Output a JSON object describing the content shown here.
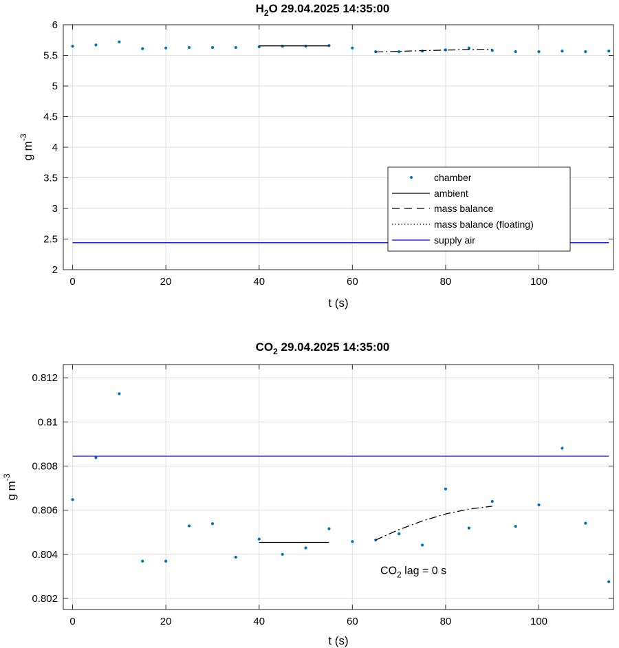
{
  "chart_data": [
    {
      "type": "scatter",
      "title": {
        "species_main": "H",
        "species_sub": "2",
        "species_tail": "O",
        "timestamp": "29.04.2025 14:35:00"
      },
      "xlabel": "t (s)",
      "ylabel": {
        "main": "g m",
        "sup": "-3"
      },
      "xlim": [
        -2,
        116
      ],
      "ylim": [
        2,
        6
      ],
      "xticks": [
        0,
        20,
        40,
        60,
        80,
        100
      ],
      "yticks": [
        2,
        2.5,
        3,
        3.5,
        4,
        4.5,
        5,
        5.5,
        6
      ],
      "grid": true,
      "legend_position": "lower-right",
      "series": [
        {
          "name": "chamber",
          "kind": "points",
          "color": "#0072bd",
          "x": [
            0,
            5,
            10,
            15,
            20,
            25,
            30,
            35,
            40,
            45,
            50,
            55,
            60,
            65,
            70,
            75,
            80,
            85,
            90,
            95,
            100,
            105,
            110,
            115
          ],
          "y": [
            5.65,
            5.67,
            5.72,
            5.61,
            5.62,
            5.63,
            5.63,
            5.63,
            5.64,
            5.65,
            5.65,
            5.66,
            5.62,
            5.56,
            5.56,
            5.57,
            5.59,
            5.62,
            5.58,
            5.56,
            5.56,
            5.57,
            5.56,
            5.57
          ]
        },
        {
          "name": "ambient",
          "kind": "solid",
          "color": "#000000",
          "x": [
            40,
            55
          ],
          "y": [
            5.655,
            5.655
          ]
        },
        {
          "name": "mass balance",
          "kind": "dashdot",
          "color": "#000000",
          "x": [
            65,
            70,
            75,
            80,
            85,
            90
          ],
          "y": [
            5.555,
            5.566,
            5.577,
            5.587,
            5.595,
            5.6
          ]
        },
        {
          "name": "mass balance (floating)",
          "kind": "dotted",
          "color": "#000000",
          "x": [],
          "y": []
        },
        {
          "name": "supply air",
          "kind": "solid",
          "color": "#0000e0",
          "x": [
            0,
            115
          ],
          "y": [
            2.44,
            2.44
          ]
        }
      ]
    },
    {
      "type": "scatter",
      "title": {
        "species_main": "CO",
        "species_sub": "2",
        "species_tail": "",
        "timestamp": "29.04.2025 14:35:00"
      },
      "xlabel": "t (s)",
      "ylabel": {
        "main": "g m",
        "sup": "-3"
      },
      "xlim": [
        -2,
        116
      ],
      "ylim": [
        0.8015,
        0.8126
      ],
      "xticks": [
        0,
        20,
        40,
        60,
        80,
        100
      ],
      "yticks": [
        0.802,
        0.804,
        0.806,
        0.808,
        0.81,
        0.812
      ],
      "grid": true,
      "annotation": {
        "main": "CO",
        "sub": "2",
        "tail": " lag = 0 s",
        "x": 66,
        "y": 0.8031
      },
      "series": [
        {
          "name": "chamber",
          "kind": "points",
          "color": "#0072bd",
          "x": [
            0,
            5,
            10,
            15,
            20,
            25,
            30,
            35,
            40,
            45,
            50,
            55,
            60,
            65,
            70,
            75,
            80,
            85,
            90,
            95,
            100,
            105,
            110,
            115
          ],
          "y": [
            0.80648,
            0.80838,
            0.81128,
            0.80369,
            0.80369,
            0.80529,
            0.80539,
            0.80387,
            0.80469,
            0.804,
            0.80429,
            0.80516,
            0.80458,
            0.80465,
            0.80493,
            0.80442,
            0.80696,
            0.80519,
            0.8064,
            0.80527,
            0.80624,
            0.80881,
            0.80541,
            0.80276
          ]
        },
        {
          "name": "ambient",
          "kind": "solid",
          "color": "#000000",
          "x": [
            40,
            55
          ],
          "y": [
            0.80454,
            0.80454
          ]
        },
        {
          "name": "mass balance",
          "kind": "dashdot",
          "color": "#000000",
          "x": [
            65,
            70,
            75,
            80,
            85,
            90
          ],
          "y": [
            0.80465,
            0.80512,
            0.80551,
            0.80583,
            0.80605,
            0.80618
          ]
        },
        {
          "name": "supply air",
          "kind": "solid",
          "color": "#2020c8",
          "x": [
            0,
            115
          ],
          "y": [
            0.80845,
            0.80845
          ]
        }
      ]
    }
  ]
}
